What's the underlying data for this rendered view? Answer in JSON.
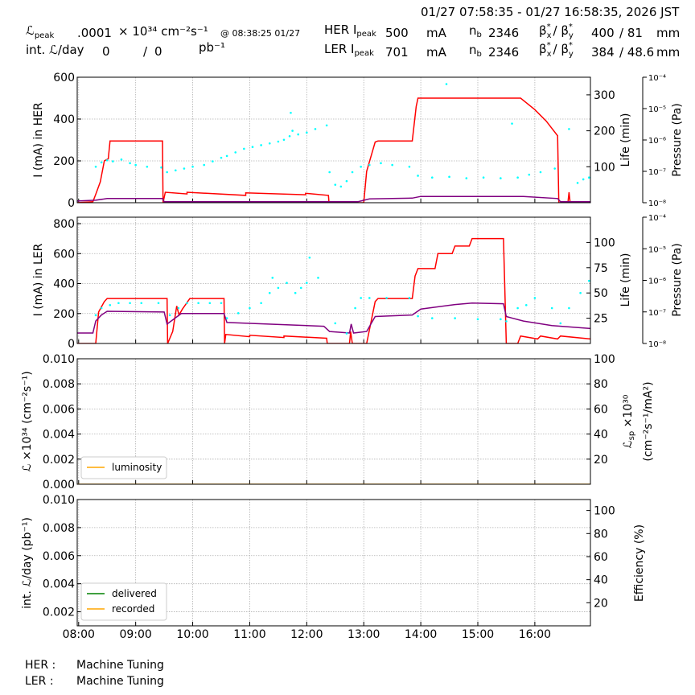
{
  "header": {
    "time_range": "01/27 07:58:35 - 01/27 16:58:35, 2026 JST",
    "lumi_symbol": "ℒ",
    "lumi_sub": "peak",
    "lumi_value": ".0001",
    "lumi_unit": "× 10³⁴ cm⁻²s⁻¹",
    "lumi_time": "@ 08:38:25 01/27",
    "int_label": "int. ℒ/day",
    "int_delivered": "0",
    "int_sep": "/",
    "int_recorded": "0",
    "int_unit": "pb⁻¹",
    "her_label": "HER I",
    "her_sub": "peak",
    "her_current": "500",
    "her_unit": "mA",
    "her_nb_label": "n",
    "her_nb_sub": "b",
    "her_nb": "2346",
    "her_beta_x": "β",
    "her_beta_sep": "/ β",
    "her_beta_star": "*",
    "her_beta_sub_x": "x",
    "her_beta_sub_y": "y",
    "her_beta_x_val": "400",
    "her_beta_y_val": "/ 81",
    "her_beta_unit": "mm",
    "ler_label": "LER I",
    "ler_sub": "peak",
    "ler_current": "701",
    "ler_unit": "mA",
    "ler_nb_label": "n",
    "ler_nb_sub": "b",
    "ler_nb": "2346",
    "ler_beta_x": "β",
    "ler_beta_sep": "/ β",
    "ler_beta_star": "*",
    "ler_beta_sub_x": "x",
    "ler_beta_sub_y": "y",
    "ler_beta_x_val": "384",
    "ler_beta_y_val": "/ 48.6",
    "ler_beta_unit": "mm"
  },
  "footer": {
    "her_label": "HER :",
    "her_status": "Machine Tuning",
    "ler_label": "LER :",
    "ler_status": "Machine Tuning"
  },
  "chart_data": [
    {
      "type": "line",
      "ylabel": "I (mA) in HER",
      "y2label": "Life (min)",
      "y3label": "Pressure (Pa)",
      "grid": true,
      "xlim": [
        7.975,
        16.975
      ],
      "ylim": [
        0,
        600
      ],
      "yticks": [
        0,
        200,
        400,
        600
      ],
      "y2lim": [
        0,
        349
      ],
      "y2ticks": [
        100,
        200,
        300
      ],
      "y3lim": [
        1e-08,
        0.0001
      ],
      "y3log": true,
      "y3ticks": [
        {
          "value": 1e-08,
          "label": "10⁻⁸"
        },
        {
          "value": 1e-07,
          "label": "10⁻⁷"
        },
        {
          "value": 1e-06,
          "label": "10⁻⁶"
        },
        {
          "value": 1e-05,
          "label": "10⁻⁵"
        },
        {
          "value": 0.0001,
          "label": "10⁻⁴"
        }
      ],
      "series": [
        {
          "color": "#ff0000",
          "style": "line",
          "x": [
            7.975,
            8.25,
            8.3,
            8.38,
            8.45,
            8.52,
            8.55,
            9.47,
            9.48,
            9.52,
            9.9,
            9.9,
            10.93,
            10.93,
            11.98,
            11.98,
            12.38,
            12.39,
            13.0,
            13.05,
            13.2,
            13.25,
            13.85,
            13.92,
            13.95,
            15.75,
            16.0,
            16.2,
            16.4,
            16.42,
            16.58,
            16.6,
            16.62,
            16.975
          ],
          "values": [
            0,
            5,
            40,
            100,
            200,
            210,
            295,
            295,
            0,
            50,
            42,
            50,
            35,
            47,
            38,
            45,
            35,
            0,
            0,
            150,
            290,
            295,
            295,
            460,
            500,
            500,
            445,
            390,
            320,
            0,
            0,
            50,
            0,
            0
          ]
        },
        {
          "color": "#800080",
          "style": "line",
          "x": [
            7.975,
            8.3,
            8.5,
            9.47,
            9.5,
            12.9,
            13.1,
            13.85,
            14.0,
            15.8,
            16.4,
            16.45,
            16.975
          ],
          "values": [
            8,
            12,
            20,
            20,
            5,
            5,
            18,
            22,
            30,
            30,
            20,
            5,
            5
          ]
        },
        {
          "color": "#00ffff",
          "style": "dots",
          "axis": "y2",
          "x": [
            8.3,
            8.4,
            8.5,
            8.6,
            8.75,
            8.9,
            9.0,
            9.2,
            9.45,
            9.55,
            9.7,
            9.85,
            10.0,
            10.2,
            10.35,
            10.5,
            10.6,
            10.75,
            10.9,
            11.05,
            11.2,
            11.35,
            11.5,
            11.6,
            11.7,
            11.72,
            11.75,
            11.85,
            12.0,
            12.15,
            12.35,
            12.4,
            12.5,
            12.6,
            12.7,
            12.8,
            12.95,
            13.1,
            13.3,
            13.5,
            13.8,
            13.95,
            14.2,
            14.45,
            14.5,
            14.8,
            15.1,
            15.4,
            15.6,
            15.7,
            15.9,
            16.1,
            16.35,
            16.6,
            16.75,
            16.85,
            16.95
          ],
          "values": [
            100,
            112,
            118,
            115,
            120,
            110,
            105,
            100,
            98,
            85,
            90,
            95,
            100,
            105,
            115,
            125,
            130,
            140,
            150,
            155,
            160,
            165,
            170,
            175,
            185,
            250,
            200,
            190,
            195,
            205,
            215,
            85,
            50,
            45,
            60,
            85,
            100,
            105,
            110,
            105,
            100,
            75,
            70,
            330,
            72,
            68,
            70,
            68,
            220,
            70,
            78,
            85,
            95,
            205,
            55,
            65,
            70
          ]
        }
      ]
    },
    {
      "type": "line",
      "ylabel": "I (mA) in LER",
      "y2label": "Life (min)",
      "y3label": "Pressure (Pa)",
      "grid": true,
      "xlim": [
        7.975,
        16.975
      ],
      "ylim": [
        0,
        843
      ],
      "yticks": [
        0,
        200,
        400,
        600,
        800
      ],
      "y2lim": [
        0,
        125
      ],
      "y2ticks": [
        25,
        50,
        75,
        100
      ],
      "y3lim": [
        1e-08,
        0.0001
      ],
      "y3log": true,
      "y3ticks": [
        {
          "value": 1e-08,
          "label": "10⁻⁸"
        },
        {
          "value": 1e-07,
          "label": "10⁻⁷"
        },
        {
          "value": 1e-06,
          "label": "10⁻⁶"
        },
        {
          "value": 1e-05,
          "label": "10⁻⁵"
        },
        {
          "value": 0.0001,
          "label": "10⁻⁴"
        }
      ],
      "series": [
        {
          "color": "#ff0000",
          "style": "line",
          "x": [
            7.975,
            8.3,
            8.35,
            8.45,
            8.5,
            9.55,
            9.56,
            9.65,
            9.72,
            9.76,
            9.82,
            9.95,
            10.55,
            10.56,
            10.58,
            11.0,
            11.0,
            11.6,
            11.6,
            12.35,
            12.36,
            12.75,
            12.77,
            12.8,
            13.05,
            13.2,
            13.25,
            13.85,
            13.9,
            13.95,
            14.25,
            14.3,
            14.55,
            14.6,
            14.85,
            14.9,
            15.45,
            15.5,
            15.7,
            15.75,
            16.05,
            16.1,
            16.4,
            16.45,
            16.975
          ],
          "values": [
            0,
            0,
            210,
            280,
            300,
            300,
            0,
            80,
            250,
            190,
            230,
            300,
            300,
            0,
            60,
            45,
            55,
            40,
            50,
            35,
            0,
            0,
            80,
            0,
            0,
            280,
            300,
            300,
            450,
            500,
            500,
            600,
            600,
            650,
            650,
            700,
            700,
            0,
            0,
            50,
            30,
            50,
            30,
            50,
            30
          ]
        },
        {
          "color": "#800080",
          "style": "line",
          "x": [
            7.975,
            8.25,
            8.3,
            8.4,
            8.5,
            9.5,
            9.55,
            9.8,
            10.55,
            10.6,
            12.3,
            12.4,
            12.75,
            12.78,
            12.82,
            13.05,
            13.2,
            13.85,
            14.0,
            14.6,
            14.9,
            15.45,
            15.5,
            15.8,
            16.3,
            16.975
          ],
          "values": [
            70,
            70,
            150,
            190,
            215,
            210,
            130,
            200,
            200,
            140,
            115,
            80,
            70,
            130,
            70,
            80,
            180,
            190,
            230,
            260,
            270,
            265,
            180,
            150,
            120,
            100
          ]
        },
        {
          "color": "#00ffff",
          "style": "dots",
          "axis": "y2",
          "x": [
            8.3,
            8.4,
            8.55,
            8.7,
            8.9,
            9.1,
            9.4,
            9.6,
            9.75,
            9.9,
            10.1,
            10.3,
            10.5,
            10.6,
            10.8,
            11.0,
            11.2,
            11.35,
            11.4,
            11.5,
            11.65,
            11.8,
            11.9,
            12.0,
            12.05,
            12.2,
            12.5,
            12.7,
            12.85,
            12.95,
            13.1,
            13.4,
            13.8,
            13.95,
            14.2,
            14.6,
            15.0,
            15.4,
            15.5,
            15.7,
            15.85,
            16.0,
            16.3,
            16.45,
            16.6,
            16.8,
            16.95
          ],
          "values": [
            28,
            35,
            38,
            40,
            40,
            40,
            40,
            28,
            35,
            40,
            40,
            40,
            40,
            25,
            30,
            35,
            40,
            50,
            65,
            55,
            60,
            50,
            55,
            60,
            85,
            65,
            20,
            10,
            35,
            45,
            45,
            45,
            45,
            27,
            25,
            25,
            24,
            24,
            22,
            35,
            38,
            45,
            35,
            20,
            35,
            50,
            62
          ]
        }
      ]
    },
    {
      "type": "line",
      "ylabel": "ℒ ×10³⁴ (cm⁻²s⁻¹)",
      "y2label": [
        "ℒ",
        "sp",
        " ×10³⁰",
        "(cm⁻²s⁻¹/mA²)"
      ],
      "grid": true,
      "xlim": [
        7.975,
        16.975
      ],
      "ylim": [
        0,
        0.01
      ],
      "yticks": [
        {
          "value": 0,
          "label": "0.000"
        },
        0.002,
        0.004,
        0.006,
        0.008,
        {
          "value": 0.01,
          "label": "0.010"
        }
      ],
      "y2lim": [
        0,
        100
      ],
      "y2ticks": [
        20,
        40,
        60,
        80,
        100
      ],
      "legend": "lower left",
      "series": [
        {
          "name": "luminosity",
          "color": "#ffa500",
          "style": "line",
          "x": [
            7.975,
            16.975
          ],
          "values": [
            0,
            0
          ]
        }
      ]
    },
    {
      "type": "line",
      "ylabel": "int. ℒ/day (pb⁻¹)",
      "y2label": "Efficiency (%)",
      "grid": true,
      "xlim": [
        7.975,
        16.975
      ],
      "ylim": [
        0.001,
        0.01
      ],
      "yticks": [
        0.002,
        0.004,
        0.006,
        0.008,
        {
          "value": 0.01,
          "label": "0.010"
        }
      ],
      "y2lim": [
        0,
        109.5
      ],
      "y2ticks": [
        20,
        40,
        60,
        80,
        100
      ],
      "legend": "lower left",
      "xticks": [
        {
          "value": 8,
          "label": "08:00"
        },
        {
          "value": 9,
          "label": "09:00"
        },
        {
          "value": 10,
          "label": "10:00"
        },
        {
          "value": 11,
          "label": "11:00"
        },
        {
          "value": 12,
          "label": "12:00"
        },
        {
          "value": 13,
          "label": "13:00"
        },
        {
          "value": 14,
          "label": "14:00"
        },
        {
          "value": 15,
          "label": "15:00"
        },
        {
          "value": 16,
          "label": "16:00"
        }
      ],
      "series": [
        {
          "name": "delivered",
          "color": "#008000",
          "style": "line",
          "x": [
            7.975,
            16.975
          ],
          "values": [
            0,
            0
          ]
        },
        {
          "name": "recorded",
          "color": "#ffa500",
          "style": "line",
          "x": [
            7.975,
            16.975
          ],
          "values": [
            0,
            0
          ]
        }
      ]
    }
  ]
}
